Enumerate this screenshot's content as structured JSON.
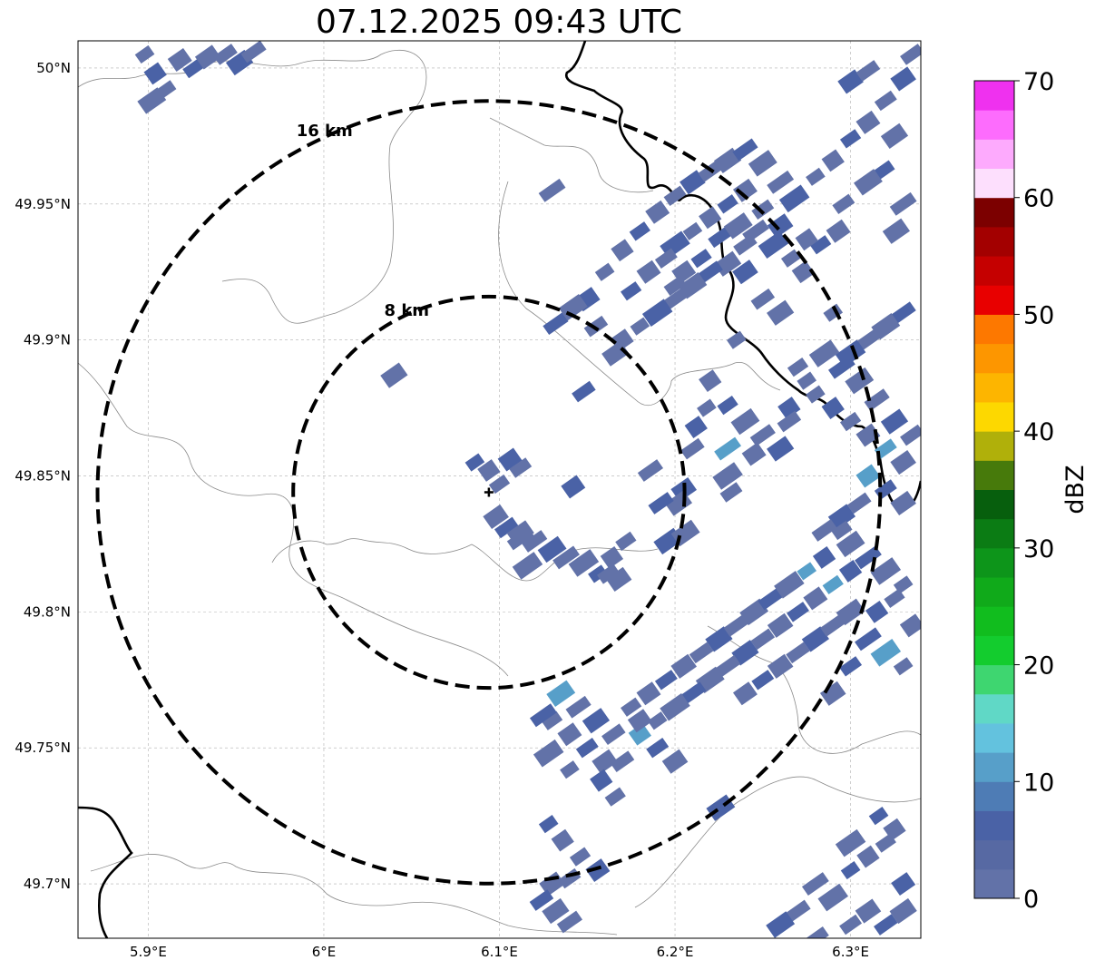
{
  "title": "07.12.2025 09:43 UTC",
  "map": {
    "lon_range": [
      5.86,
      6.34
    ],
    "lat_range": [
      49.68,
      50.01
    ],
    "lon_ticks": [
      {
        "value": 5.9,
        "label": "5.9°E"
      },
      {
        "value": 6.0,
        "label": "6°E"
      },
      {
        "value": 6.1,
        "label": "6.1°E"
      },
      {
        "value": 6.2,
        "label": "6.2°E"
      },
      {
        "value": 6.3,
        "label": "6.3°E"
      }
    ],
    "lat_ticks": [
      {
        "value": 50.0,
        "label": "50°N"
      },
      {
        "value": 49.95,
        "label": "49.95°N"
      },
      {
        "value": 49.9,
        "label": "49.9°N"
      },
      {
        "value": 49.85,
        "label": "49.85°N"
      },
      {
        "value": 49.8,
        "label": "49.8°N"
      },
      {
        "value": 49.75,
        "label": "49.75°N"
      },
      {
        "value": 49.7,
        "label": "49.7°N"
      }
    ],
    "grid": true,
    "radar_site": {
      "lon": 6.094,
      "lat": 49.844
    },
    "range_rings": [
      {
        "km": 8,
        "label": "8 km"
      },
      {
        "km": 16,
        "label": "16 km"
      }
    ]
  },
  "colorbar": {
    "label": "dBZ",
    "min": 0,
    "max": 70,
    "ticks": [
      0,
      10,
      20,
      30,
      40,
      50,
      60,
      70
    ],
    "colors": [
      "#6272a8",
      "#5769a3",
      "#4a62a6",
      "#4e7cb5",
      "#579fc9",
      "#63c2de",
      "#60d8c6",
      "#3ed670",
      "#13cc2e",
      "#11bd1e",
      "#10aa1a",
      "#0d951a",
      "#0b7c14",
      "#075f0d",
      "#477a0b",
      "#b0b00a",
      "#fdd800",
      "#fdb500",
      "#fd9600",
      "#fd7800",
      "#e80000",
      "#c50000",
      "#a30000",
      "#7c0000",
      "#fddffd",
      "#fdaafd",
      "#fd6cfd",
      "#ef31ef"
    ]
  },
  "colors": {
    "echo_low": "#6272a8",
    "echo_mid": "#4a62a6",
    "echo_high": "#579fc9",
    "border": "#000000",
    "admin_lines": "#8a8a8a",
    "grid": "#b0b0b0"
  },
  "echoes": [
    {
      "name": "nw-strip",
      "cells": [
        [
          5.898,
          50.005
        ],
        [
          5.904,
          49.998
        ],
        [
          5.91,
          49.992
        ],
        [
          5.918,
          50.003
        ],
        [
          5.926,
          50.0
        ],
        [
          5.934,
          50.004
        ],
        [
          5.944,
          50.005
        ],
        [
          5.952,
          50.002
        ],
        [
          5.96,
          50.006
        ],
        [
          5.902,
          49.988
        ]
      ]
    },
    {
      "name": "center-cluster",
      "cells": [
        [
          6.086,
          49.855
        ],
        [
          6.094,
          49.852
        ],
        [
          6.1,
          49.847
        ],
        [
          6.106,
          49.856
        ],
        [
          6.112,
          49.853
        ],
        [
          6.098,
          49.835
        ],
        [
          6.104,
          49.831
        ],
        [
          6.112,
          49.829
        ],
        [
          6.12,
          49.826
        ],
        [
          6.13,
          49.823
        ],
        [
          6.138,
          49.82
        ],
        [
          6.148,
          49.818
        ],
        [
          6.156,
          49.814
        ],
        [
          6.164,
          49.82
        ],
        [
          6.172,
          49.826
        ],
        [
          6.142,
          49.846
        ],
        [
          6.162,
          49.814
        ],
        [
          6.168,
          49.812
        ],
        [
          6.148,
          49.881
        ],
        [
          6.04,
          49.887
        ],
        [
          6.186,
          49.852
        ],
        [
          6.196,
          49.826
        ],
        [
          6.112,
          49.827
        ],
        [
          6.116,
          49.817
        ]
      ]
    },
    {
      "name": "north-band",
      "cells": [
        [
          6.16,
          49.925
        ],
        [
          6.17,
          49.933
        ],
        [
          6.18,
          49.94
        ],
        [
          6.19,
          49.947
        ],
        [
          6.2,
          49.953
        ],
        [
          6.21,
          49.958
        ],
        [
          6.22,
          49.962
        ],
        [
          6.23,
          49.966
        ],
        [
          6.24,
          49.97
        ],
        [
          6.25,
          49.965
        ],
        [
          6.26,
          49.958
        ],
        [
          6.268,
          49.952
        ],
        [
          6.28,
          49.96
        ],
        [
          6.29,
          49.966
        ],
        [
          6.3,
          49.974
        ],
        [
          6.31,
          49.98
        ],
        [
          6.32,
          49.988
        ],
        [
          6.33,
          49.996
        ],
        [
          6.335,
          50.005
        ],
        [
          6.325,
          49.975
        ],
        [
          6.318,
          49.962
        ],
        [
          6.31,
          49.958
        ],
        [
          6.33,
          49.95
        ],
        [
          6.2,
          49.935
        ],
        [
          6.21,
          49.94
        ],
        [
          6.22,
          49.945
        ],
        [
          6.23,
          49.95
        ],
        [
          6.24,
          49.955
        ],
        [
          6.25,
          49.948
        ],
        [
          6.26,
          49.942
        ],
        [
          6.24,
          49.935
        ],
        [
          6.23,
          49.928
        ],
        [
          6.22,
          49.925
        ],
        [
          6.21,
          49.92
        ],
        [
          6.2,
          49.915
        ],
        [
          6.19,
          49.91
        ],
        [
          6.18,
          49.905
        ],
        [
          6.17,
          49.9
        ],
        [
          6.175,
          49.918
        ],
        [
          6.185,
          49.925
        ],
        [
          6.195,
          49.93
        ],
        [
          6.15,
          49.915
        ],
        [
          6.155,
          49.905
        ],
        [
          6.166,
          49.895
        ],
        [
          6.226,
          49.938
        ],
        [
          6.236,
          49.942
        ],
        [
          6.246,
          49.94
        ],
        [
          6.256,
          49.935
        ],
        [
          6.266,
          49.93
        ],
        [
          6.273,
          49.925
        ],
        [
          6.283,
          49.935
        ],
        [
          6.293,
          49.94
        ],
        [
          6.296,
          49.95
        ],
        [
          6.3,
          49.995
        ],
        [
          6.31,
          49.999
        ],
        [
          6.326,
          49.94
        ],
        [
          6.33,
          49.91
        ],
        [
          6.32,
          49.905
        ],
        [
          6.31,
          49.9
        ],
        [
          6.3,
          49.895
        ],
        [
          6.29,
          49.91
        ],
        [
          6.275,
          49.937
        ],
        [
          6.215,
          49.93
        ],
        [
          6.205,
          49.925
        ],
        [
          6.2,
          49.92
        ],
        [
          6.24,
          49.925
        ],
        [
          6.25,
          49.915
        ],
        [
          6.26,
          49.91
        ],
        [
          6.132,
          49.906
        ],
        [
          6.142,
          49.912
        ],
        [
          6.13,
          49.955
        ]
      ]
    },
    {
      "name": "east-band",
      "cells": [
        [
          6.28,
          49.88
        ],
        [
          6.29,
          49.875
        ],
        [
          6.3,
          49.87
        ],
        [
          6.31,
          49.865
        ],
        [
          6.32,
          49.86
        ],
        [
          6.33,
          49.855
        ],
        [
          6.335,
          49.865
        ],
        [
          6.325,
          49.87
        ],
        [
          6.315,
          49.878
        ],
        [
          6.305,
          49.885
        ],
        [
          6.295,
          49.89
        ],
        [
          6.285,
          49.895
        ],
        [
          6.275,
          49.885
        ],
        [
          6.265,
          49.875
        ],
        [
          6.27,
          49.89
        ],
        [
          6.31,
          49.85
        ],
        [
          6.32,
          49.845
        ],
        [
          6.33,
          49.84
        ],
        [
          6.305,
          49.84
        ],
        [
          6.295,
          49.835
        ],
        [
          6.285,
          49.83
        ],
        [
          6.3,
          49.825
        ],
        [
          6.31,
          49.82
        ],
        [
          6.32,
          49.815
        ],
        [
          6.33,
          49.81
        ],
        [
          6.3,
          49.815
        ],
        [
          6.29,
          49.81
        ],
        [
          6.28,
          49.805
        ],
        [
          6.27,
          49.8
        ],
        [
          6.26,
          49.795
        ],
        [
          6.25,
          49.79
        ],
        [
          6.24,
          49.785
        ],
        [
          6.23,
          49.78
        ],
        [
          6.22,
          49.775
        ],
        [
          6.21,
          49.77
        ],
        [
          6.2,
          49.765
        ],
        [
          6.19,
          49.76
        ],
        [
          6.18,
          49.755
        ],
        [
          6.175,
          49.765
        ],
        [
          6.185,
          49.77
        ],
        [
          6.195,
          49.775
        ],
        [
          6.205,
          49.78
        ],
        [
          6.215,
          49.785
        ],
        [
          6.225,
          49.79
        ],
        [
          6.235,
          49.795
        ],
        [
          6.245,
          49.8
        ],
        [
          6.255,
          49.805
        ],
        [
          6.265,
          49.81
        ],
        [
          6.275,
          49.815
        ],
        [
          6.285,
          49.82
        ],
        [
          6.295,
          49.83
        ],
        [
          6.24,
          49.77
        ],
        [
          6.25,
          49.775
        ],
        [
          6.26,
          49.78
        ],
        [
          6.27,
          49.785
        ],
        [
          6.28,
          49.79
        ],
        [
          6.29,
          49.795
        ],
        [
          6.3,
          49.8
        ],
        [
          6.31,
          49.79
        ],
        [
          6.32,
          49.785
        ],
        [
          6.33,
          49.78
        ],
        [
          6.315,
          49.8
        ],
        [
          6.325,
          49.805
        ],
        [
          6.335,
          49.795
        ],
        [
          6.3,
          49.78
        ],
        [
          6.29,
          49.77
        ],
        [
          6.265,
          49.87
        ],
        [
          6.26,
          49.86
        ],
        [
          6.25,
          49.865
        ],
        [
          6.24,
          49.87
        ],
        [
          6.23,
          49.86
        ],
        [
          6.23,
          49.85
        ],
        [
          6.218,
          49.875
        ],
        [
          6.212,
          49.868
        ],
        [
          6.13,
          49.76
        ],
        [
          6.14,
          49.755
        ],
        [
          6.15,
          49.75
        ],
        [
          6.16,
          49.745
        ],
        [
          6.165,
          49.755
        ],
        [
          6.155,
          49.76
        ],
        [
          6.145,
          49.765
        ],
        [
          6.135,
          49.77
        ],
        [
          6.125,
          49.762
        ],
        [
          6.128,
          49.748
        ],
        [
          6.14,
          49.742
        ],
        [
          6.158,
          49.738
        ],
        [
          6.166,
          49.732
        ],
        [
          6.18,
          49.76
        ],
        [
          6.19,
          49.75
        ],
        [
          6.2,
          49.745
        ],
        [
          6.17,
          49.745
        ]
      ]
    },
    {
      "name": "south-spots",
      "cells": [
        [
          6.128,
          49.722
        ],
        [
          6.136,
          49.716
        ],
        [
          6.146,
          49.71
        ],
        [
          6.156,
          49.705
        ],
        [
          6.14,
          49.702
        ],
        [
          6.13,
          49.7
        ],
        [
          6.124,
          49.694
        ],
        [
          6.132,
          49.69
        ],
        [
          6.14,
          49.686
        ],
        [
          6.226,
          49.728
        ],
        [
          6.28,
          49.7
        ],
        [
          6.29,
          49.695
        ],
        [
          6.3,
          49.705
        ],
        [
          6.31,
          49.71
        ],
        [
          6.32,
          49.715
        ],
        [
          6.33,
          49.7
        ],
        [
          6.3,
          49.685
        ],
        [
          6.31,
          49.69
        ],
        [
          6.32,
          49.685
        ],
        [
          6.33,
          49.69
        ],
        [
          6.27,
          49.69
        ],
        [
          6.26,
          49.685
        ],
        [
          6.28,
          49.68
        ],
        [
          6.3,
          49.715
        ],
        [
          6.316,
          49.725
        ],
        [
          6.325,
          49.72
        ]
      ]
    },
    {
      "name": "mid-light-spots",
      "cells": [
        [
          6.235,
          49.9
        ],
        [
          6.22,
          49.885
        ],
        [
          6.23,
          49.876
        ],
        [
          6.245,
          49.858
        ],
        [
          6.232,
          49.844
        ],
        [
          6.205,
          49.845
        ],
        [
          6.21,
          49.86
        ],
        [
          6.202,
          49.84
        ],
        [
          6.192,
          49.84
        ],
        [
          6.206,
          49.829
        ]
      ]
    }
  ]
}
